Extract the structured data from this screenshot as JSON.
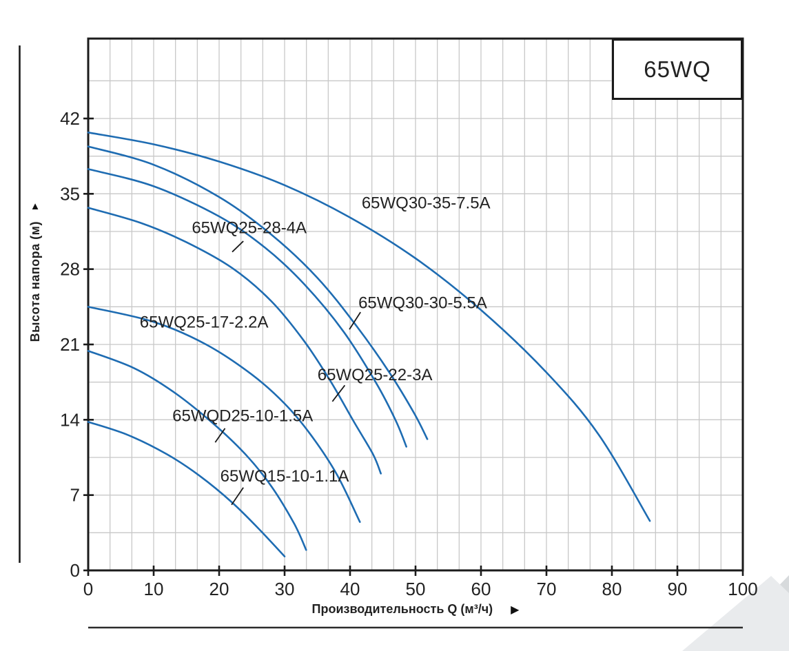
{
  "page": {
    "series_box_label": "65WQ"
  },
  "colors": {
    "curve": "#1e6cb2",
    "grid": "#c8c8c8",
    "axis": "#1b1b1b",
    "text": "#222222",
    "corner_dark": "#d7dadc",
    "corner_light": "#e9ebed"
  },
  "chart_data": {
    "type": "line",
    "title_box": "65WQ",
    "xlabel": "Производительность Q (м³/ч)",
    "ylabel": "Высота напора (м)",
    "xlim": [
      0,
      100
    ],
    "ylim": [
      0,
      49.4
    ],
    "x_ticks": [
      0,
      10,
      20,
      30,
      40,
      50,
      60,
      70,
      80,
      90,
      100
    ],
    "y_ticks": [
      0,
      7,
      14,
      21,
      28,
      35,
      42
    ],
    "grid": {
      "x_minor_step": 3.3333,
      "y_minor_step": 3.5,
      "visible": true
    },
    "legend_position": "inline-labels",
    "series": [
      {
        "name": "65WQ30-35-7.5A",
        "points": [
          [
            0,
            40.7
          ],
          [
            10,
            39.6
          ],
          [
            20,
            38.0
          ],
          [
            30,
            35.8
          ],
          [
            40,
            32.8
          ],
          [
            50,
            29.0
          ],
          [
            60,
            24.2
          ],
          [
            70,
            18.4
          ],
          [
            78,
            12.6
          ],
          [
            85.8,
            4.6
          ]
        ],
        "label_at": [
          51.6,
          34.2
        ],
        "leader": null
      },
      {
        "name": "65WQ30-30-5.5A",
        "points": [
          [
            0,
            39.4
          ],
          [
            10,
            37.7
          ],
          [
            20,
            34.7
          ],
          [
            28,
            31.2
          ],
          [
            35,
            27.2
          ],
          [
            41,
            22.7
          ],
          [
            46,
            18.4
          ],
          [
            49.8,
            14.6
          ],
          [
            51.8,
            12.2
          ]
        ],
        "label_at": [
          51.1,
          24.9
        ],
        "leader": [
          [
            41.6,
            24.0
          ],
          [
            39.9,
            22.4
          ]
        ]
      },
      {
        "name": "65WQ25-28-4A",
        "points": [
          [
            0,
            37.3
          ],
          [
            10,
            35.7
          ],
          [
            20,
            32.9
          ],
          [
            27,
            30.0
          ],
          [
            33,
            26.6
          ],
          [
            39,
            22.2
          ],
          [
            44,
            17.4
          ],
          [
            47,
            13.9
          ],
          [
            48.6,
            11.5
          ]
        ],
        "label_at": [
          24.6,
          31.9
        ],
        "leader": [
          [
            23.7,
            30.6
          ],
          [
            22.0,
            29.6
          ]
        ]
      },
      {
        "name": "65WQ25-22-3A",
        "points": [
          [
            0,
            33.7
          ],
          [
            8,
            32.3
          ],
          [
            15,
            30.5
          ],
          [
            22,
            28.1
          ],
          [
            28,
            25.0
          ],
          [
            33,
            21.3
          ],
          [
            37,
            17.6
          ],
          [
            40.5,
            13.9
          ],
          [
            43.5,
            10.8
          ],
          [
            44.7,
            9.0
          ]
        ],
        "label_at": [
          43.8,
          18.2
        ],
        "leader": [
          [
            39.2,
            17.2
          ],
          [
            37.3,
            15.7
          ]
        ]
      },
      {
        "name": "65WQ25-17-2.2A",
        "points": [
          [
            0,
            24.5
          ],
          [
            10,
            23.1
          ],
          [
            18,
            21.0
          ],
          [
            25,
            18.2
          ],
          [
            30,
            15.5
          ],
          [
            34,
            12.6
          ],
          [
            38,
            8.9
          ],
          [
            41.5,
            4.5
          ]
        ],
        "label_at": [
          17.7,
          23.1
        ],
        "leader": null
      },
      {
        "name": "65WQD25-10-1.5A",
        "points": [
          [
            0,
            20.4
          ],
          [
            7,
            18.8
          ],
          [
            13,
            16.6
          ],
          [
            19,
            13.7
          ],
          [
            24,
            10.8
          ],
          [
            28,
            7.8
          ],
          [
            31.5,
            4.3
          ],
          [
            33.3,
            1.9
          ]
        ],
        "label_at": [
          23.6,
          14.4
        ],
        "leader": [
          [
            20.9,
            13.2
          ],
          [
            19.4,
            11.9
          ]
        ]
      },
      {
        "name": "65WQ15-10-1.1A",
        "points": [
          [
            0,
            13.8
          ],
          [
            6,
            12.6
          ],
          [
            12,
            10.8
          ],
          [
            17,
            8.8
          ],
          [
            22,
            6.3
          ],
          [
            26,
            3.9
          ],
          [
            30,
            1.3
          ]
        ],
        "label_at": [
          30.0,
          8.8
        ],
        "leader": [
          [
            23.7,
            7.7
          ],
          [
            21.9,
            6.1
          ]
        ]
      }
    ]
  }
}
